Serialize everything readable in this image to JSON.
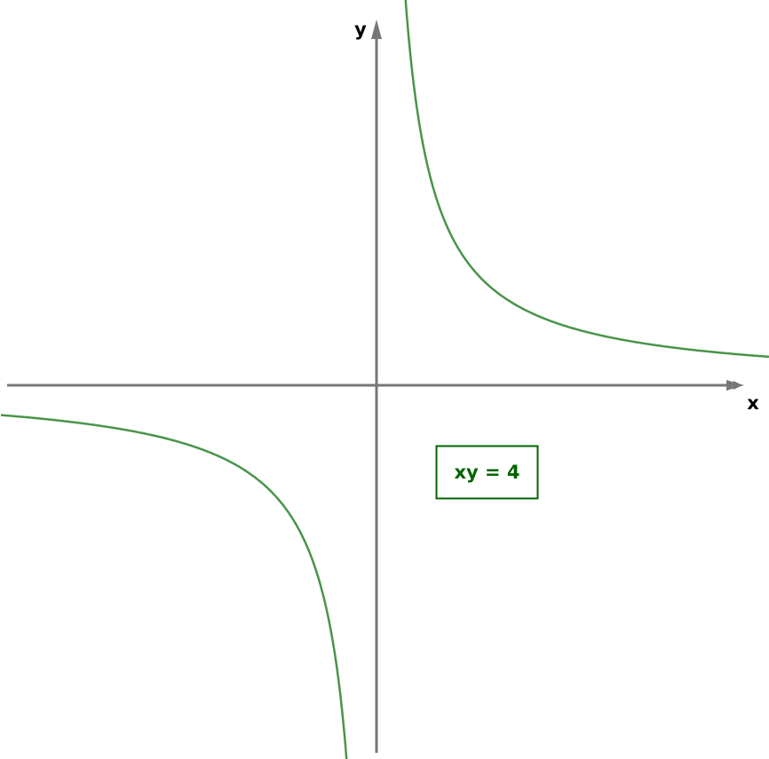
{
  "axes": {
    "x_label": "x",
    "y_label": "y"
  },
  "equation": "xy = 4"
}
